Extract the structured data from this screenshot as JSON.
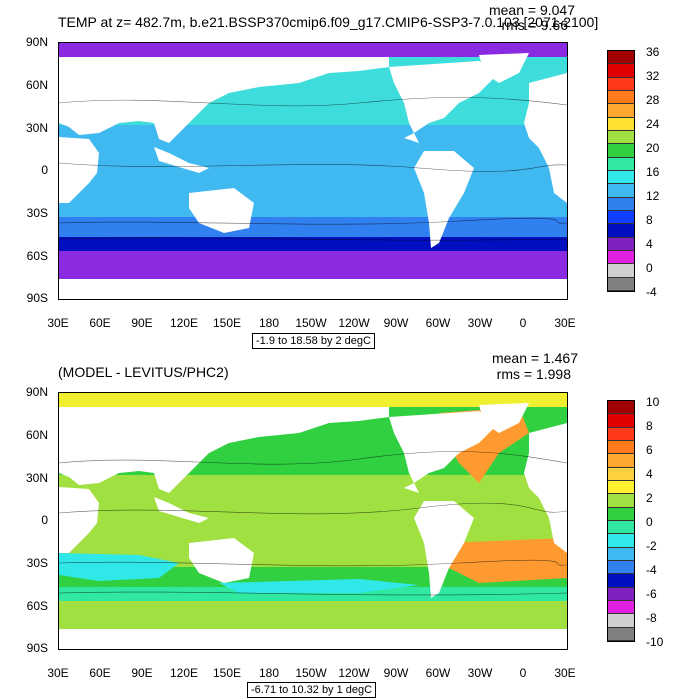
{
  "panels": [
    {
      "title": "TEMP at z= 482.7m, b.e21.BSSP370cmip6.f09_g17.CMIP6-SSP3-7.0.103 [2071-2100]",
      "mean": "mean = 9.047",
      "rms": "rms = 9.66",
      "range_label": "-1.9 to 18.58 by 2 degC",
      "lat_labels": [
        "90N",
        "60N",
        "30N",
        "0",
        "30S",
        "60S",
        "90S"
      ],
      "lon_labels": [
        "30E",
        "60E",
        "90E",
        "120E",
        "150E",
        "180",
        "150W",
        "120W",
        "90W",
        "60W",
        "30W",
        "0",
        "30E"
      ],
      "colorbar_labels": [
        "36",
        "32",
        "28",
        "24",
        "20",
        "16",
        "12",
        "8",
        "4",
        "0",
        "-4"
      ],
      "colorbar_colors": [
        "#a00000",
        "#e00000",
        "#ff3a1a",
        "#ff7a1a",
        "#ffa830",
        "#ffe030",
        "#a0e040",
        "#30d040",
        "#30e8a0",
        "#30e8e8",
        "#40b8f0",
        "#3080f0",
        "#1040ff",
        "#0010c0",
        "#8020c0",
        "#e020e0",
        "#d0d0d0",
        "#808080"
      ],
      "ocean_colors": {
        "arctic": "#8a2be2",
        "north": "#3fdcdc",
        "tropic": "#40b8f0",
        "south": "#3080f0",
        "acc": "#0010c0",
        "antarctic": "#8a2be2"
      }
    },
    {
      "title": "(MODEL - LEVITUS/PHC2)",
      "mean": "mean = 1.467",
      "rms": "rms = 1.998",
      "range_label": "-6.71 to 10.32 by 1 degC",
      "lat_labels": [
        "90N",
        "60N",
        "30N",
        "0",
        "30S",
        "60S",
        "90S"
      ],
      "lon_labels": [
        "30E",
        "60E",
        "90E",
        "120E",
        "150E",
        "180",
        "150W",
        "120W",
        "90W",
        "60W",
        "30W",
        "0",
        "30E"
      ],
      "colorbar_labels": [
        "10",
        "8",
        "6",
        "4",
        "2",
        "0",
        "-2",
        "-4",
        "-6",
        "-8",
        "-10"
      ],
      "colorbar_colors": [
        "#a00000",
        "#e00000",
        "#ff3a1a",
        "#ff7a1a",
        "#ffa830",
        "#ffd040",
        "#fff030",
        "#a0e040",
        "#30d040",
        "#30e8a0",
        "#30e8e8",
        "#40b8f0",
        "#3080f0",
        "#0010c0",
        "#8020c0",
        "#e020e0",
        "#d0d0d0",
        "#808080"
      ],
      "ocean_colors": {
        "arctic": "#f0f030",
        "north": "#30d040",
        "tropic": "#a0e040",
        "south": "#30d040",
        "acc": "#30e8a0",
        "antarctic": "#a0e040"
      }
    }
  ]
}
